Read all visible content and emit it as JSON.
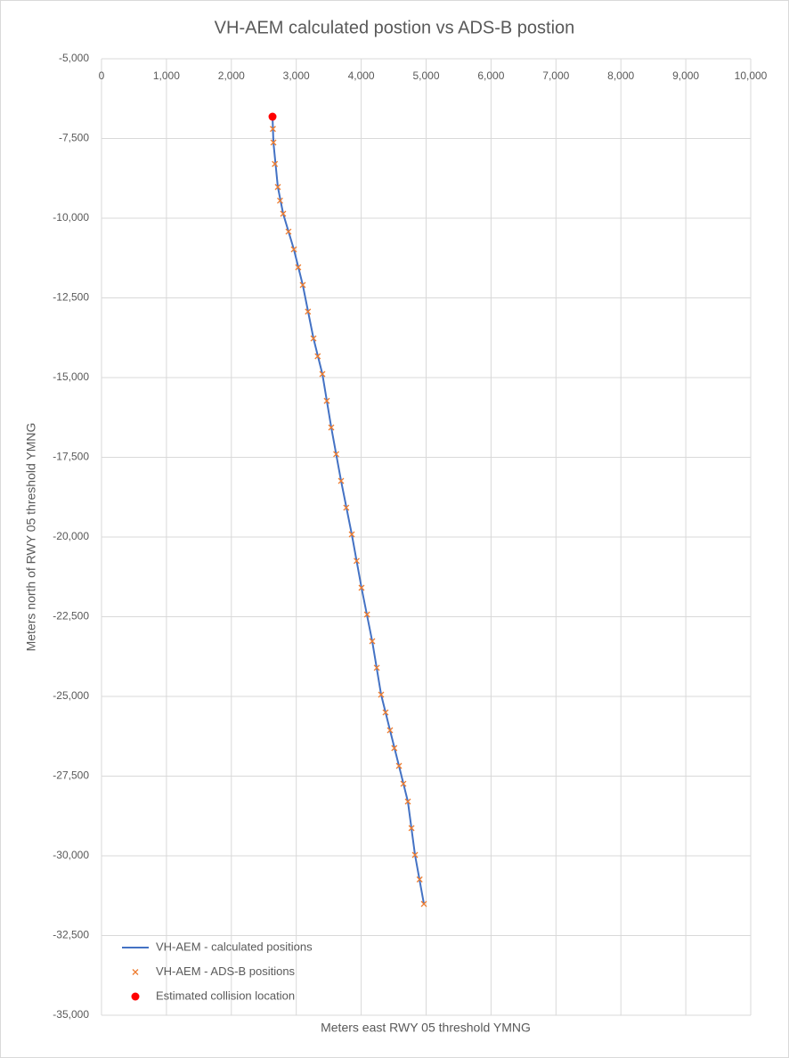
{
  "chart_data": {
    "type": "scatter",
    "title": "VH-AEM calculated postion vs ADS-B postion",
    "x_label": "Meters east RWY 05 threshold YMNG",
    "y_label": "Meters north of RWY 05 threshold YMNG",
    "xlim": [
      0,
      10000
    ],
    "ylim": [
      -35000,
      -5000
    ],
    "xticks": [
      0,
      {
        "value": 1000,
        "label": "1,000"
      },
      {
        "value": 2000,
        "label": "2,000"
      },
      {
        "value": 3000,
        "label": "3,000"
      },
      {
        "value": 4000,
        "label": "4,000"
      },
      {
        "value": 5000,
        "label": "5,000"
      },
      {
        "value": 6000,
        "label": "6,000"
      },
      {
        "value": 7000,
        "label": "7,000"
      },
      {
        "value": 8000,
        "label": "8,000"
      },
      {
        "value": 9000,
        "label": "9,000"
      },
      {
        "value": 10000,
        "label": "10,000"
      }
    ],
    "yticks": [
      {
        "value": -5000,
        "label": "-5,000"
      },
      {
        "value": -7500,
        "label": "-7,500"
      },
      {
        "value": -10000,
        "label": "-10,000"
      },
      {
        "value": -12500,
        "label": "-12,500"
      },
      {
        "value": -15000,
        "label": "-15,000"
      },
      {
        "value": -17500,
        "label": "-17,500"
      },
      {
        "value": -20000,
        "label": "-20,000"
      },
      {
        "value": -22500,
        "label": "-22,500"
      },
      {
        "value": -25000,
        "label": "-25,000"
      },
      {
        "value": -27500,
        "label": "-27,500"
      },
      {
        "value": -30000,
        "label": "-30,000"
      },
      {
        "value": -32500,
        "label": "-32,500"
      },
      {
        "value": -35000,
        "label": "-35,000"
      }
    ],
    "grid": true,
    "legend": "bottom-left",
    "series": [
      {
        "name": "VH-AEM - calculated positions",
        "color": "#4472c4",
        "style": "line",
        "x": [
          2634,
          2648,
          2716,
          2798,
          2963,
          3100,
          3265,
          3402,
          3539,
          3690,
          3855,
          4005,
          4170,
          4307,
          4444,
          4582,
          4719,
          4829,
          4966
        ],
        "y": [
          -6816,
          -7626,
          -9022,
          -9860,
          -10978,
          -12095,
          -13771,
          -14888,
          -16564,
          -18240,
          -19916,
          -21592,
          -23268,
          -24944,
          -26061,
          -27179,
          -28296,
          -29972,
          -31508
        ]
      },
      {
        "name": "VH-AEM - ADS-B positions",
        "color": "#ed7d31",
        "style": "cross",
        "x": [
          2634,
          2640,
          2648,
          2670,
          2716,
          2750,
          2798,
          2880,
          2963,
          3030,
          3100,
          3180,
          3265,
          3330,
          3402,
          3470,
          3539,
          3615,
          3690,
          3770,
          3855,
          3930,
          4005,
          4090,
          4170,
          4240,
          4307,
          4375,
          4444,
          4510,
          4582,
          4650,
          4719,
          4775,
          4829,
          4900,
          4966
        ],
        "y": [
          -6816,
          -7200,
          -7626,
          -8300,
          -9022,
          -9450,
          -9860,
          -10420,
          -10978,
          -11540,
          -12095,
          -12930,
          -13771,
          -14330,
          -14888,
          -15730,
          -16564,
          -17400,
          -18240,
          -19080,
          -19916,
          -20750,
          -21592,
          -22430,
          -23268,
          -24100,
          -24944,
          -25500,
          -26061,
          -26620,
          -27179,
          -27740,
          -28296,
          -29130,
          -29972,
          -30740,
          -31508
        ]
      },
      {
        "name": "Estimated collision location",
        "color": "#ff0000",
        "style": "dot",
        "x": [
          2634
        ],
        "y": [
          -6816
        ]
      }
    ]
  }
}
